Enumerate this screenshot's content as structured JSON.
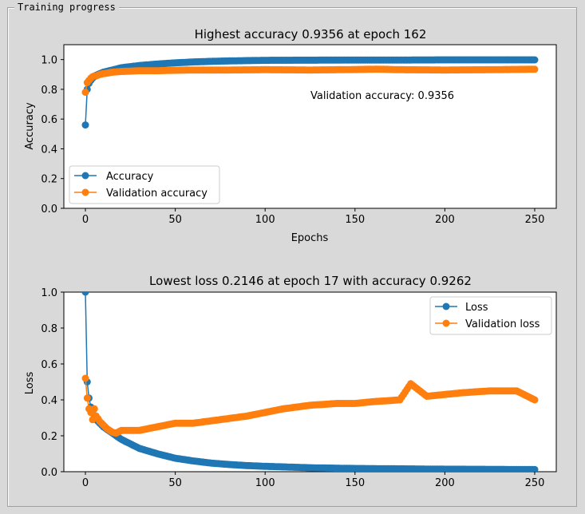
{
  "window": {
    "group_title": "Training progress"
  },
  "chart_data": [
    {
      "type": "line",
      "title": "Highest accuracy 0.9356 at epoch 162",
      "xlabel": "Epochs",
      "ylabel": "Accuracy",
      "xlim": [
        -12,
        262
      ],
      "ylim": [
        0,
        1.1
      ],
      "xticks": [
        0,
        50,
        100,
        150,
        200,
        250
      ],
      "yticks": [
        0.0,
        0.2,
        0.4,
        0.6,
        0.8,
        1.0
      ],
      "annotation": {
        "text": "Validation accuracy: 0.9356",
        "x": 125,
        "y": 0.75
      },
      "legend": "bottom-left",
      "grid": false,
      "series": [
        {
          "name": "Accuracy",
          "color": "#1f77b4",
          "x": [
            0,
            1,
            2,
            3,
            4,
            5,
            6,
            8,
            10,
            15,
            20,
            30,
            40,
            50,
            60,
            70,
            80,
            90,
            100,
            125,
            150,
            175,
            200,
            225,
            250
          ],
          "y": [
            0.56,
            0.8,
            0.84,
            0.86,
            0.875,
            0.885,
            0.895,
            0.905,
            0.915,
            0.93,
            0.945,
            0.96,
            0.97,
            0.978,
            0.984,
            0.988,
            0.991,
            0.993,
            0.995,
            0.996,
            0.997,
            0.997,
            0.998,
            0.998,
            0.998
          ]
        },
        {
          "name": "Validation accuracy",
          "color": "#ff7f0e",
          "x": [
            0,
            1,
            2,
            3,
            4,
            5,
            6,
            8,
            10,
            15,
            20,
            30,
            40,
            50,
            60,
            80,
            100,
            125,
            150,
            162,
            175,
            200,
            225,
            250
          ],
          "y": [
            0.78,
            0.845,
            0.86,
            0.875,
            0.885,
            0.89,
            0.89,
            0.9,
            0.905,
            0.915,
            0.92,
            0.925,
            0.925,
            0.928,
            0.93,
            0.93,
            0.932,
            0.93,
            0.933,
            0.9356,
            0.932,
            0.93,
            0.932,
            0.935
          ]
        }
      ]
    },
    {
      "type": "line",
      "title": "Lowest loss 0.2146 at epoch 17 with accuracy 0.9262",
      "xlabel": "",
      "ylabel": "Loss",
      "xlim": [
        -12,
        262
      ],
      "ylim": [
        0,
        1.0
      ],
      "xticks": [
        0,
        50,
        100,
        150,
        200,
        250
      ],
      "yticks": [
        0.0,
        0.2,
        0.4,
        0.6,
        0.8,
        1.0
      ],
      "legend": "top-right",
      "grid": false,
      "series": [
        {
          "name": "Loss",
          "color": "#1f77b4",
          "x": [
            0,
            1,
            2,
            3,
            4,
            5,
            6,
            8,
            10,
            15,
            20,
            30,
            40,
            50,
            60,
            70,
            80,
            90,
            100,
            125,
            150,
            175,
            200,
            225,
            250
          ],
          "y": [
            1.0,
            0.5,
            0.41,
            0.36,
            0.33,
            0.31,
            0.29,
            0.27,
            0.25,
            0.215,
            0.18,
            0.13,
            0.1,
            0.075,
            0.06,
            0.048,
            0.04,
            0.034,
            0.03,
            0.022,
            0.018,
            0.016,
            0.014,
            0.013,
            0.012
          ]
        },
        {
          "name": "Validation loss",
          "color": "#ff7f0e",
          "x": [
            0,
            1,
            2,
            3,
            4,
            5,
            6,
            8,
            10,
            12,
            15,
            17,
            20,
            25,
            30,
            40,
            50,
            60,
            75,
            90,
            100,
            110,
            125,
            140,
            150,
            160,
            175,
            181,
            190,
            200,
            210,
            225,
            240,
            250
          ],
          "y": [
            0.52,
            0.41,
            0.35,
            0.33,
            0.29,
            0.35,
            0.31,
            0.28,
            0.26,
            0.24,
            0.22,
            0.2146,
            0.23,
            0.23,
            0.23,
            0.25,
            0.27,
            0.27,
            0.29,
            0.31,
            0.33,
            0.35,
            0.37,
            0.38,
            0.38,
            0.39,
            0.4,
            0.49,
            0.42,
            0.43,
            0.44,
            0.45,
            0.45,
            0.4
          ]
        }
      ]
    }
  ]
}
